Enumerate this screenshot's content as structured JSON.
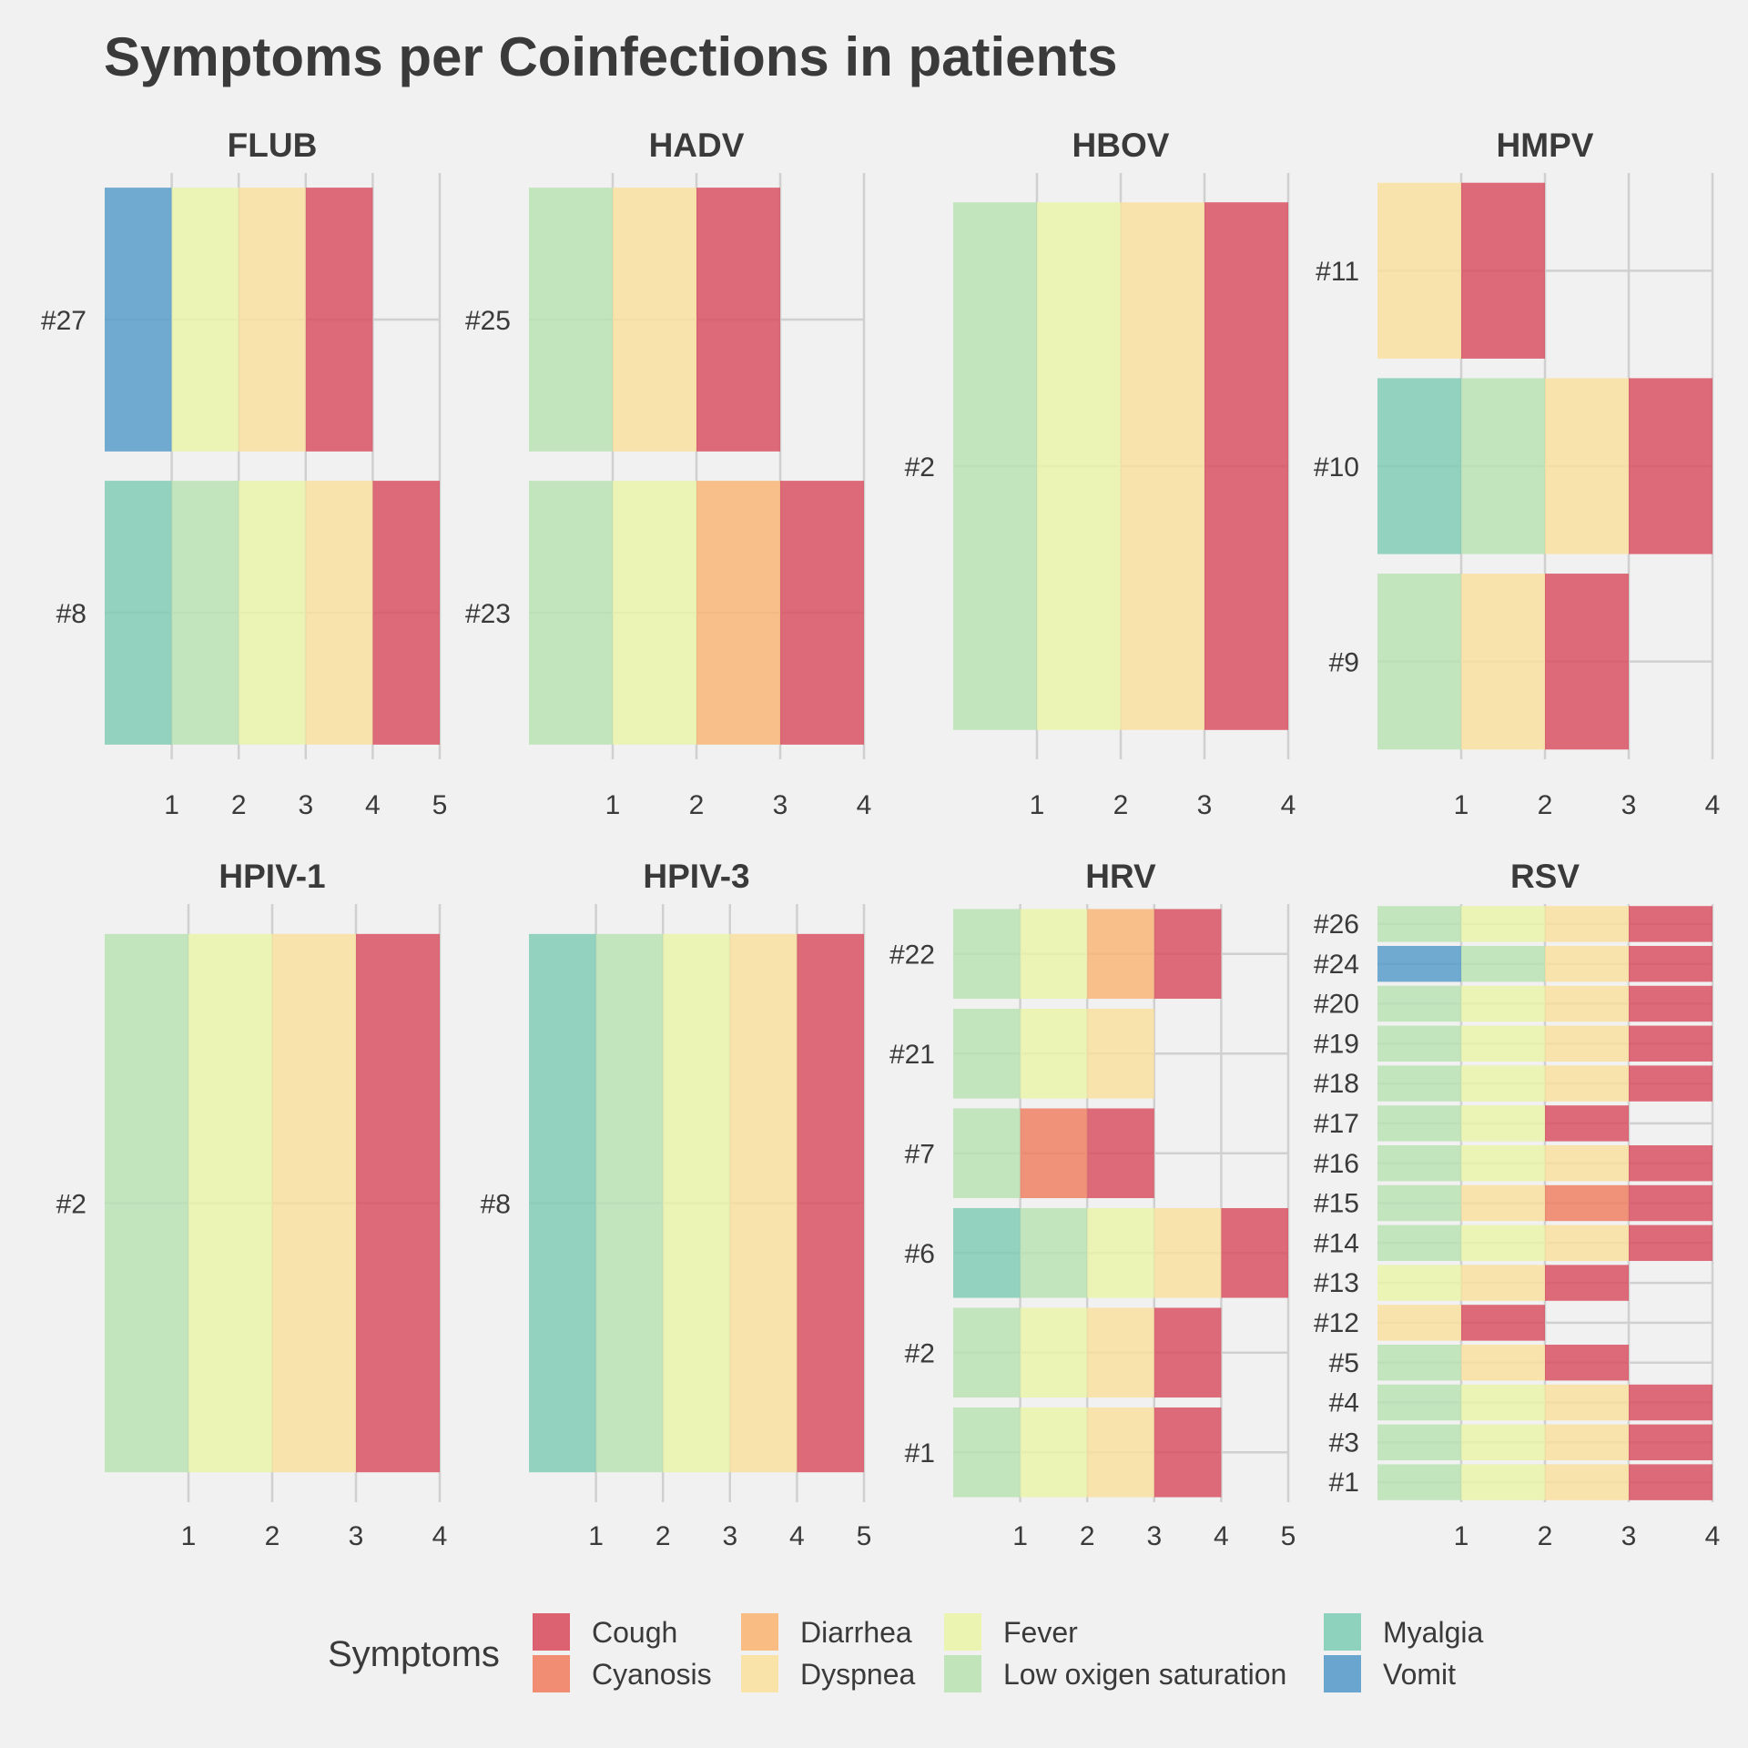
{
  "chart_data": {
    "type": "bar",
    "orientation": "horizontal",
    "stacked": true,
    "title": "Symptoms per Coinfections in patients",
    "xlabel": "",
    "ylabel": "",
    "grid": true,
    "legend": {
      "title": "Symptoms",
      "placement": "bottom",
      "entries": [
        {
          "name": "Cough",
          "color": "#d8485a"
        },
        {
          "name": "Cyanosis",
          "color": "#f07b5c"
        },
        {
          "name": "Diarrhea",
          "color": "#fab370"
        },
        {
          "name": "Dyspnea",
          "color": "#fbe09b"
        },
        {
          "name": "Fever",
          "color": "#eaf4a6"
        },
        {
          "name": "Low oxigen saturation",
          "color": "#b8e2b1"
        },
        {
          "name": "Myalgia",
          "color": "#7ccbb3"
        },
        {
          "name": "Vomit",
          "color": "#5198c9"
        }
      ]
    },
    "facets": [
      {
        "name": "FLUB",
        "xlim": [
          0,
          5
        ],
        "xticks": [
          "1",
          "2",
          "3",
          "4",
          "5"
        ],
        "patients": [
          {
            "id": "#27",
            "symptoms": [
              "Vomit",
              "Fever",
              "Dyspnea",
              "Cough"
            ]
          },
          {
            "id": "#8",
            "symptoms": [
              "Myalgia",
              "Low oxigen saturation",
              "Fever",
              "Dyspnea",
              "Cough"
            ]
          }
        ]
      },
      {
        "name": "HADV",
        "xlim": [
          0,
          4
        ],
        "xticks": [
          "1",
          "2",
          "3",
          "4"
        ],
        "patients": [
          {
            "id": "#25",
            "symptoms": [
              "Low oxigen saturation",
              "Dyspnea",
              "Cough"
            ]
          },
          {
            "id": "#23",
            "symptoms": [
              "Low oxigen saturation",
              "Fever",
              "Diarrhea",
              "Cough"
            ]
          }
        ]
      },
      {
        "name": "HBOV",
        "xlim": [
          0,
          4
        ],
        "xticks": [
          "1",
          "2",
          "3",
          "4"
        ],
        "patients": [
          {
            "id": "#2",
            "symptoms": [
              "Low oxigen saturation",
              "Fever",
              "Dyspnea",
              "Cough"
            ]
          }
        ]
      },
      {
        "name": "HMPV",
        "xlim": [
          0,
          4
        ],
        "xticks": [
          "1",
          "2",
          "3",
          "4"
        ],
        "patients": [
          {
            "id": "#11",
            "symptoms": [
              "Dyspnea",
              "Cough"
            ]
          },
          {
            "id": "#10",
            "symptoms": [
              "Myalgia",
              "Low oxigen saturation",
              "Dyspnea",
              "Cough"
            ]
          },
          {
            "id": "#9",
            "symptoms": [
              "Low oxigen saturation",
              "Dyspnea",
              "Cough"
            ]
          }
        ]
      },
      {
        "name": "HPIV-1",
        "xlim": [
          0,
          4
        ],
        "xticks": [
          "1",
          "2",
          "3",
          "4"
        ],
        "patients": [
          {
            "id": "#2",
            "symptoms": [
              "Low oxigen saturation",
              "Fever",
              "Dyspnea",
              "Cough"
            ]
          }
        ]
      },
      {
        "name": "HPIV-3",
        "xlim": [
          0,
          5
        ],
        "xticks": [
          "1",
          "2",
          "3",
          "4",
          "5"
        ],
        "patients": [
          {
            "id": "#8",
            "symptoms": [
              "Myalgia",
              "Low oxigen saturation",
              "Fever",
              "Dyspnea",
              "Cough"
            ]
          }
        ]
      },
      {
        "name": "HRV",
        "xlim": [
          0,
          5
        ],
        "xticks": [
          "1",
          "2",
          "3",
          "4",
          "5"
        ],
        "patients": [
          {
            "id": "#22",
            "symptoms": [
              "Low oxigen saturation",
              "Fever",
              "Diarrhea",
              "Cough"
            ]
          },
          {
            "id": "#21",
            "symptoms": [
              "Low oxigen saturation",
              "Fever",
              "Dyspnea"
            ]
          },
          {
            "id": "#7",
            "symptoms": [
              "Low oxigen saturation",
              "Cyanosis",
              "Cough"
            ]
          },
          {
            "id": "#6",
            "symptoms": [
              "Myalgia",
              "Low oxigen saturation",
              "Fever",
              "Dyspnea",
              "Cough"
            ]
          },
          {
            "id": "#2",
            "symptoms": [
              "Low oxigen saturation",
              "Fever",
              "Dyspnea",
              "Cough"
            ]
          },
          {
            "id": "#1",
            "symptoms": [
              "Low oxigen saturation",
              "Fever",
              "Dyspnea",
              "Cough"
            ]
          }
        ]
      },
      {
        "name": "RSV",
        "xlim": [
          0,
          4
        ],
        "xticks": [
          "1",
          "2",
          "3",
          "4"
        ],
        "patients": [
          {
            "id": "#26",
            "symptoms": [
              "Low oxigen saturation",
              "Fever",
              "Dyspnea",
              "Cough"
            ]
          },
          {
            "id": "#24",
            "symptoms": [
              "Vomit",
              "Low oxigen saturation",
              "Dyspnea",
              "Cough"
            ]
          },
          {
            "id": "#20",
            "symptoms": [
              "Low oxigen saturation",
              "Fever",
              "Dyspnea",
              "Cough"
            ]
          },
          {
            "id": "#19",
            "symptoms": [
              "Low oxigen saturation",
              "Fever",
              "Dyspnea",
              "Cough"
            ]
          },
          {
            "id": "#18",
            "symptoms": [
              "Low oxigen saturation",
              "Fever",
              "Dyspnea",
              "Cough"
            ]
          },
          {
            "id": "#17",
            "symptoms": [
              "Low oxigen saturation",
              "Fever",
              "Cough"
            ]
          },
          {
            "id": "#16",
            "symptoms": [
              "Low oxigen saturation",
              "Fever",
              "Dyspnea",
              "Cough"
            ]
          },
          {
            "id": "#15",
            "symptoms": [
              "Low oxigen saturation",
              "Dyspnea",
              "Cyanosis",
              "Cough"
            ]
          },
          {
            "id": "#14",
            "symptoms": [
              "Low oxigen saturation",
              "Fever",
              "Dyspnea",
              "Cough"
            ]
          },
          {
            "id": "#13",
            "symptoms": [
              "Fever",
              "Dyspnea",
              "Cough"
            ]
          },
          {
            "id": "#12",
            "symptoms": [
              "Dyspnea",
              "Cough"
            ]
          },
          {
            "id": "#5",
            "symptoms": [
              "Low oxigen saturation",
              "Dyspnea",
              "Cough"
            ]
          },
          {
            "id": "#4",
            "symptoms": [
              "Low oxigen saturation",
              "Fever",
              "Dyspnea",
              "Cough"
            ]
          },
          {
            "id": "#3",
            "symptoms": [
              "Low oxigen saturation",
              "Fever",
              "Dyspnea",
              "Cough"
            ]
          },
          {
            "id": "#1",
            "symptoms": [
              "Low oxigen saturation",
              "Fever",
              "Dyspnea",
              "Cough"
            ]
          }
        ]
      }
    ]
  }
}
